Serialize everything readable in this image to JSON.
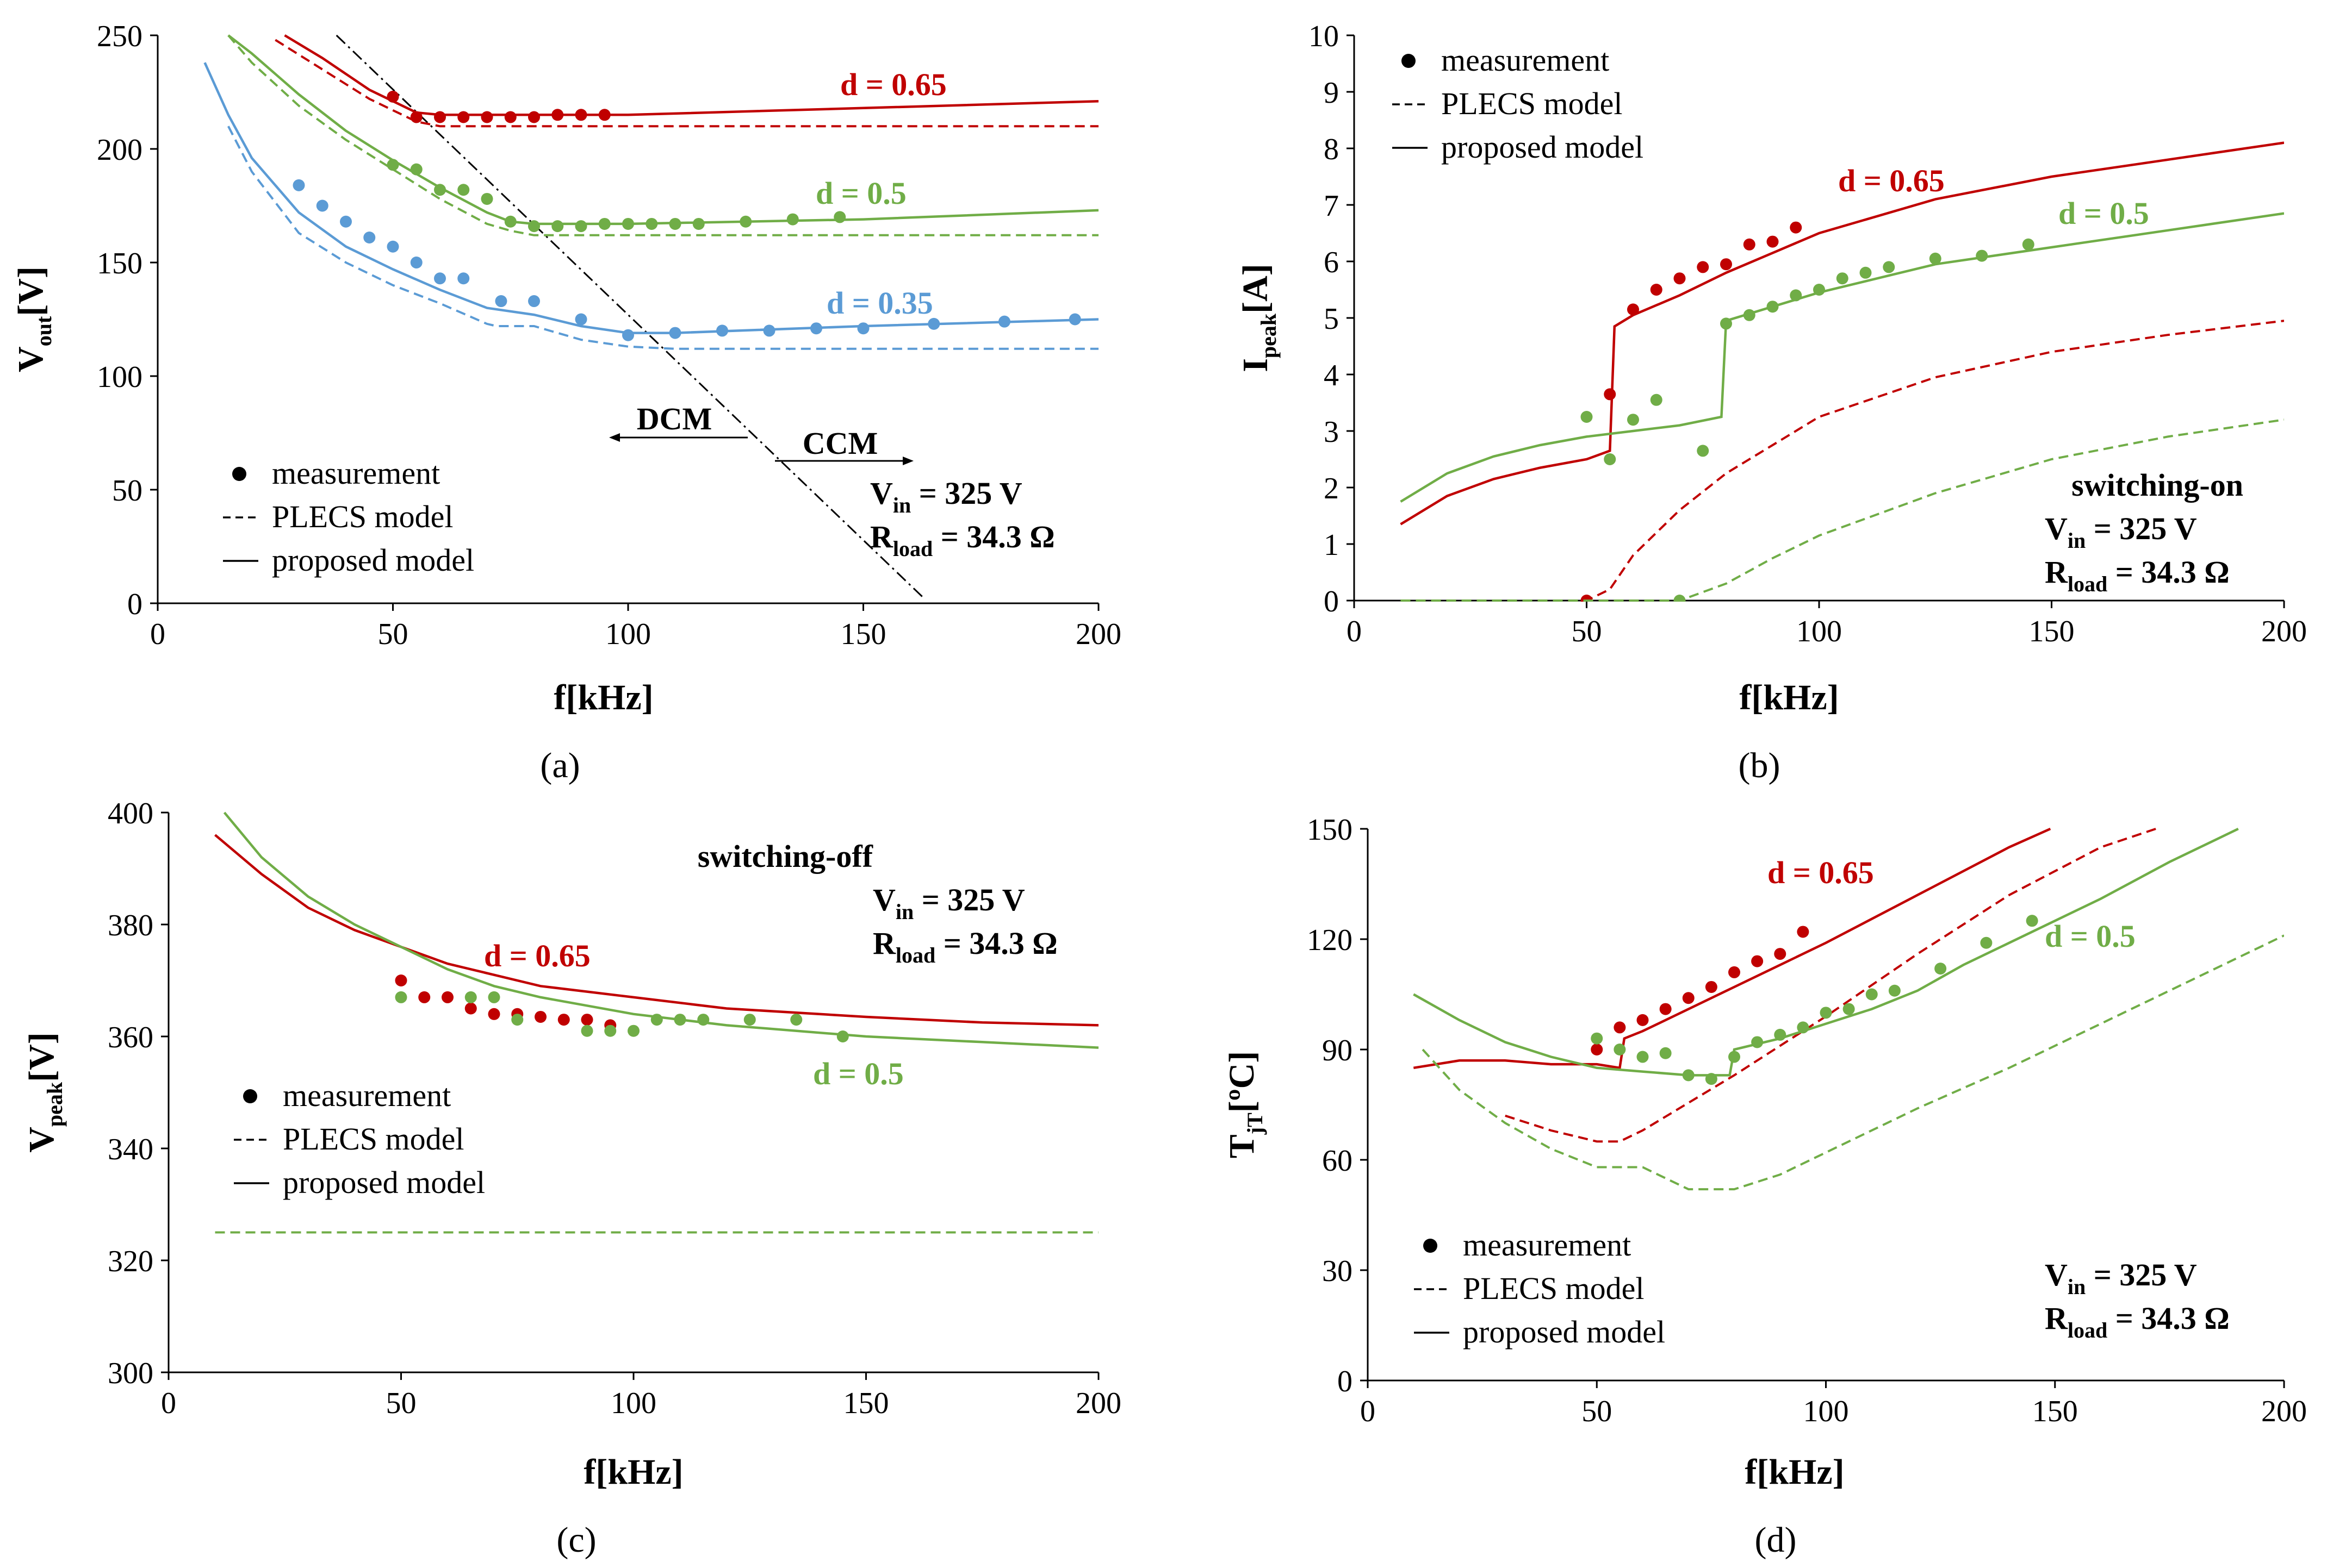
{
  "colors": {
    "red": "#c00000",
    "green": "#70ad47",
    "blue": "#5b9bd5",
    "axis": "#000000"
  },
  "legend": {
    "measurement": "measurement",
    "plecs": "PLECS model",
    "proposed": "proposed model"
  },
  "chart_data": [
    {
      "id": "a",
      "type": "line+scatter",
      "panel_label": "(a)",
      "xlabel": "f[kHz]",
      "ylabel_main": "V",
      "ylabel_sub": "out",
      "ylabel_tail": "[V]",
      "xlim": [
        0,
        200
      ],
      "ylim": [
        0,
        250
      ],
      "xticks": [
        0,
        50,
        100,
        150,
        200
      ],
      "yticks": [
        0,
        50,
        100,
        150,
        200,
        250
      ],
      "notes": {
        "vin_main": "V",
        "vin_sub": "in",
        "vin_val": " = 325 V",
        "rload_main": "R",
        "rload_sub": "load",
        "rload_val": " = 34.3 Ω"
      },
      "mode_labels": {
        "dcm": "DCM",
        "ccm": "CCM"
      },
      "boundary_line": {
        "x": [
          38,
          163
        ],
        "y": [
          250,
          2
        ]
      },
      "series": [
        {
          "name": "d = 0.65",
          "color": "red",
          "measurement": {
            "x": [
              50,
              55,
              60,
              65,
              70,
              75,
              80,
              85,
              90,
              95
            ],
            "y": [
              223,
              214,
              214,
              214,
              214,
              214,
              214,
              215,
              215,
              215
            ]
          },
          "plecs": {
            "x": [
              25,
              35,
              45,
              55,
              60,
              80,
              100,
              150,
              200
            ],
            "y": [
              248,
              235,
              222,
              212,
              210,
              210,
              210,
              210,
              210
            ]
          },
          "proposed": {
            "x": [
              27,
              35,
              45,
              55,
              60,
              80,
              100,
              150,
              200
            ],
            "y": [
              250,
              240,
              226,
              216,
              215,
              215,
              215,
              218,
              221
            ]
          }
        },
        {
          "name": "d = 0.5",
          "color": "green",
          "measurement": {
            "x": [
              50,
              55,
              60,
              65,
              70,
              75,
              80,
              85,
              90,
              95,
              100,
              105,
              110,
              115,
              125,
              135,
              145
            ],
            "y": [
              193,
              191,
              182,
              182,
              178,
              168,
              166,
              166,
              166,
              167,
              167,
              167,
              167,
              167,
              168,
              169,
              170
            ]
          },
          "plecs": {
            "x": [
              15,
              20,
              30,
              40,
              50,
              60,
              70,
              75,
              80,
              100,
              150,
              200
            ],
            "y": [
              250,
              238,
              219,
              204,
              191,
              178,
              167,
              164,
              162,
              162,
              162,
              162
            ]
          },
          "proposed": {
            "x": [
              15,
              20,
              30,
              40,
              50,
              60,
              70,
              75,
              80,
              100,
              150,
              200
            ],
            "y": [
              250,
              242,
              224,
              208,
              195,
              183,
              172,
              168,
              167,
              167,
              169,
              173
            ]
          }
        },
        {
          "name": "d = 0.35",
          "color": "blue",
          "measurement": {
            "x": [
              30,
              35,
              40,
              45,
              50,
              55,
              60,
              65,
              73,
              80,
              90,
              100,
              110,
              120,
              130,
              140,
              150,
              165,
              180,
              195
            ],
            "y": [
              184,
              175,
              168,
              161,
              157,
              150,
              143,
              143,
              133,
              133,
              125,
              118,
              119,
              120,
              120,
              121,
              121,
              123,
              124,
              125
            ]
          },
          "plecs": {
            "x": [
              15,
              20,
              30,
              40,
              50,
              60,
              70,
              72,
              80,
              90,
              100,
              110,
              150,
              200
            ],
            "y": [
              210,
              190,
              163,
              150,
              140,
              132,
              123,
              122,
              122,
              116,
              113,
              112,
              112,
              112
            ]
          },
          "proposed": {
            "x": [
              10,
              15,
              20,
              30,
              40,
              50,
              60,
              70,
              80,
              90,
              100,
              110,
              150,
              200
            ],
            "y": [
              238,
              215,
              196,
              172,
              157,
              147,
              138,
              130,
              127,
              122,
              119,
              119,
              122,
              125
            ]
          }
        }
      ]
    },
    {
      "id": "b",
      "type": "line+scatter",
      "panel_label": "(b)",
      "xlabel": "f[kHz]",
      "ylabel_main": "I",
      "ylabel_sub": "peak",
      "ylabel_tail": "[A]",
      "xlim": [
        0,
        200
      ],
      "ylim": [
        0,
        10
      ],
      "xticks": [
        0,
        50,
        100,
        150,
        200
      ],
      "yticks": [
        0,
        1,
        2,
        3,
        4,
        5,
        6,
        7,
        8,
        9,
        10
      ],
      "notes": {
        "mode": "switching-on",
        "vin_main": "V",
        "vin_sub": "in",
        "vin_val": " = 325 V",
        "rload_main": "R",
        "rload_sub": "load",
        "rload_val": " = 34.3 Ω"
      },
      "series": [
        {
          "name": "d = 0.65",
          "color": "red",
          "measurement": {
            "x": [
              50,
              55,
              60,
              65,
              70,
              75,
              80,
              85,
              90,
              95
            ],
            "y": [
              0,
              3.65,
              5.15,
              5.5,
              5.7,
              5.9,
              5.95,
              6.3,
              6.35,
              6.6
            ]
          },
          "plecs": {
            "x": [
              10,
              50,
              55,
              60,
              70,
              80,
              90,
              100,
              125,
              150,
              175,
              200
            ],
            "y": [
              0,
              0,
              0.2,
              0.8,
              1.6,
              2.25,
              2.75,
              3.25,
              3.95,
              4.4,
              4.7,
              4.95
            ]
          },
          "proposed": {
            "x": [
              10,
              20,
              30,
              40,
              50,
              55,
              56,
              60,
              70,
              80,
              90,
              100,
              125,
              150,
              175,
              200
            ],
            "y": [
              1.35,
              1.85,
              2.15,
              2.35,
              2.5,
              2.65,
              4.85,
              5.05,
              5.4,
              5.8,
              6.15,
              6.5,
              7.1,
              7.5,
              7.8,
              8.1
            ]
          }
        },
        {
          "name": "d = 0.5",
          "color": "green",
          "measurement": {
            "x": [
              50,
              55,
              60,
              65,
              70,
              75,
              80,
              85,
              90,
              95,
              100,
              105,
              110,
              115,
              125,
              135,
              145
            ],
            "y": [
              3.25,
              2.5,
              3.2,
              3.55,
              0,
              2.65,
              4.9,
              5.05,
              5.2,
              5.4,
              5.5,
              5.7,
              5.8,
              5.9,
              6.05,
              6.1,
              6.3
            ]
          },
          "plecs": {
            "x": [
              10,
              70,
              80,
              90,
              100,
              125,
              150,
              175,
              200
            ],
            "y": [
              0,
              0,
              0.3,
              0.75,
              1.15,
              1.9,
              2.5,
              2.9,
              3.2
            ]
          },
          "proposed": {
            "x": [
              10,
              20,
              30,
              40,
              50,
              60,
              70,
              79,
              80,
              90,
              100,
              125,
              150,
              175,
              200
            ],
            "y": [
              1.75,
              2.25,
              2.55,
              2.75,
              2.9,
              3.0,
              3.1,
              3.25,
              4.95,
              5.2,
              5.45,
              5.95,
              6.25,
              6.55,
              6.85
            ]
          }
        }
      ]
    },
    {
      "id": "c",
      "type": "line+scatter",
      "panel_label": "(c)",
      "xlabel": "f[kHz]",
      "ylabel_main": "V",
      "ylabel_sub": "peak",
      "ylabel_tail": "[V]",
      "xlim": [
        0,
        200
      ],
      "ylim": [
        300,
        400
      ],
      "xticks": [
        0,
        50,
        100,
        150,
        200
      ],
      "yticks": [
        300,
        320,
        340,
        360,
        380,
        400
      ],
      "notes": {
        "mode": "switching-off",
        "vin_main": "V",
        "vin_sub": "in",
        "vin_val": " = 325 V",
        "rload_main": "R",
        "rload_sub": "load",
        "rload_val": " = 34.3 Ω"
      },
      "series": [
        {
          "name": "d = 0.65",
          "color": "red",
          "measurement": {
            "x": [
              50,
              55,
              60,
              65,
              70,
              75,
              80,
              85,
              90,
              95
            ],
            "y": [
              370,
              367,
              367,
              365,
              364,
              364,
              363.5,
              363,
              363,
              362
            ]
          },
          "plecs": {
            "x": [
              10,
              200
            ],
            "y": [
              325,
              325
            ]
          },
          "proposed": {
            "x": [
              10,
              20,
              30,
              40,
              50,
              60,
              70,
              80,
              100,
              120,
              150,
              175,
              200
            ],
            "y": [
              396,
              389,
              383,
              379,
              376,
              373,
              371,
              369,
              367,
              365,
              363.5,
              362.5,
              362
            ]
          }
        },
        {
          "name": "d = 0.5",
          "color": "green",
          "measurement": {
            "x": [
              50,
              65,
              70,
              75,
              90,
              95,
              100,
              105,
              110,
              115,
              125,
              135,
              145
            ],
            "y": [
              367,
              367,
              367,
              363,
              361,
              361,
              361,
              363,
              363,
              363,
              363,
              363,
              360
            ]
          },
          "plecs": {
            "x": [
              10,
              200
            ],
            "y": [
              325,
              325
            ]
          },
          "proposed": {
            "x": [
              12,
              20,
              30,
              40,
              50,
              60,
              70,
              80,
              100,
              120,
              150,
              175,
              200
            ],
            "y": [
              400,
              392,
              385,
              380,
              376,
              372,
              369,
              367,
              364,
              362,
              360,
              359,
              358
            ]
          }
        }
      ]
    },
    {
      "id": "d",
      "type": "line+scatter",
      "panel_label": "(d)",
      "xlabel": "f[kHz]",
      "ylabel_main": "T",
      "ylabel_sub": "jT",
      "ylabel_tail": "[ºC]",
      "xlim": [
        0,
        200
      ],
      "ylim": [
        0,
        150
      ],
      "xticks": [
        0,
        50,
        100,
        150,
        200
      ],
      "yticks": [
        0,
        30,
        60,
        90,
        120,
        150
      ],
      "notes": {
        "vin_main": "V",
        "vin_sub": "in",
        "vin_val": " = 325 V",
        "rload_main": "R",
        "rload_sub": "load",
        "rload_val": " = 34.3 Ω"
      },
      "series": [
        {
          "name": "d = 0.65",
          "color": "red",
          "measurement": {
            "x": [
              50,
              55,
              60,
              65,
              70,
              75,
              80,
              85,
              90,
              95
            ],
            "y": [
              90,
              96,
              98,
              101,
              104,
              107,
              111,
              114,
              116,
              122
            ]
          },
          "plecs": {
            "x": [
              30,
              40,
              50,
              55,
              60,
              80,
              100,
              120,
              140,
              160,
              172
            ],
            "y": [
              72,
              68,
              65,
              65,
              68,
              83,
              99,
              116,
              132,
              145,
              150
            ]
          },
          "proposed": {
            "x": [
              10,
              20,
              30,
              40,
              50,
              55,
              56,
              60,
              80,
              100,
              120,
              140,
              149
            ],
            "y": [
              85,
              87,
              87,
              86,
              86,
              85,
              93,
              95,
              107,
              119,
              132,
              145,
              150
            ]
          }
        },
        {
          "name": "d = 0.5",
          "color": "green",
          "measurement": {
            "x": [
              50,
              55,
              60,
              65,
              70,
              75,
              80,
              85,
              90,
              95,
              100,
              105,
              110,
              115,
              125,
              135,
              145
            ],
            "y": [
              93,
              90,
              88,
              89,
              83,
              82,
              88,
              92,
              94,
              96,
              100,
              101,
              105,
              106,
              112,
              119,
              125
            ]
          },
          "plecs": {
            "x": [
              12,
              20,
              30,
              40,
              50,
              55,
              60,
              65,
              70,
              80,
              90,
              100,
              120,
              140,
              160,
              180,
              200
            ],
            "y": [
              90,
              79,
              70,
              63,
              58,
              58,
              58,
              55,
              52,
              52,
              56,
              62,
              74,
              85,
              97,
              109,
              121
            ]
          },
          "proposed": {
            "x": [
              10,
              20,
              30,
              40,
              50,
              60,
              70,
              79,
              80,
              90,
              100,
              110,
              120,
              130,
              140,
              150,
              160,
              175,
              190
            ],
            "y": [
              105,
              98,
              92,
              88,
              85,
              84,
              83,
              83,
              90,
              93,
              97,
              101,
              106,
              113,
              119,
              125,
              131,
              141,
              150
            ]
          }
        }
      ]
    }
  ]
}
